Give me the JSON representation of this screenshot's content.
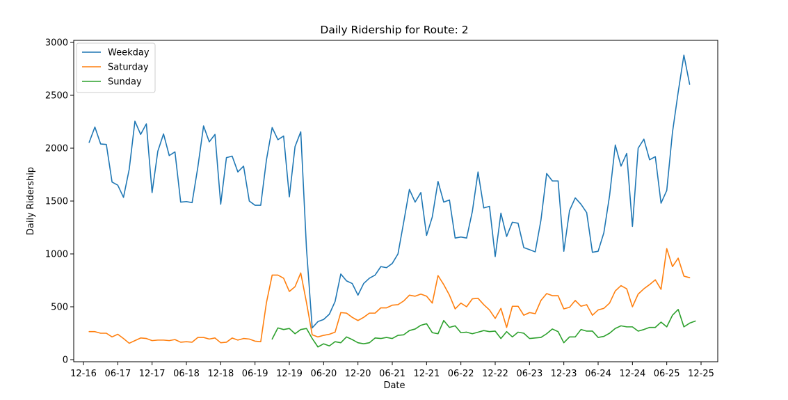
{
  "chart_data": {
    "type": "line",
    "title": "Daily Ridership for Route: 2",
    "xlabel": "Date",
    "ylabel": "Daily Ridership",
    "ylim": [
      0,
      3000
    ],
    "yticks": [
      0,
      500,
      1000,
      1500,
      2000,
      2500,
      3000
    ],
    "x_tick_labels": [
      "12-16",
      "06-17",
      "12-17",
      "06-18",
      "12-18",
      "06-19",
      "12-19",
      "06-20",
      "12-20",
      "06-21",
      "12-21",
      "06-22",
      "12-22",
      "06-23",
      "12-23",
      "06-24",
      "12-24",
      "06-25",
      "12-25"
    ],
    "x_tick_dates": [
      "2016-12",
      "2017-06",
      "2017-12",
      "2018-06",
      "2018-12",
      "2019-06",
      "2019-12",
      "2020-06",
      "2020-12",
      "2021-06",
      "2021-12",
      "2022-06",
      "2022-12",
      "2023-06",
      "2023-12",
      "2024-06",
      "2024-12",
      "2025-06",
      "2025-12"
    ],
    "x_start": "2016-12",
    "x_end": "2025-12",
    "grid": false,
    "legend_position": "top-left",
    "series": [
      {
        "name": "Weekday",
        "color": "#1f77b4",
        "start": "2017-01",
        "values": [
          2055,
          2200,
          2040,
          2035,
          1680,
          1650,
          1535,
          1800,
          2255,
          2130,
          2230,
          1580,
          1970,
          2135,
          1930,
          1965,
          1490,
          1495,
          1485,
          1820,
          2210,
          2060,
          2130,
          1470,
          1910,
          1925,
          1775,
          1830,
          1500,
          1460,
          1460,
          1890,
          2195,
          2080,
          2115,
          1540,
          2015,
          2155,
          1050,
          300,
          360,
          380,
          430,
          550,
          810,
          745,
          720,
          610,
          720,
          770,
          800,
          880,
          870,
          910,
          1000,
          1300,
          1610,
          1490,
          1580,
          1175,
          1350,
          1685,
          1490,
          1510,
          1150,
          1160,
          1150,
          1400,
          1775,
          1435,
          1450,
          975,
          1385,
          1165,
          1300,
          1290,
          1060,
          1040,
          1020,
          1320,
          1760,
          1690,
          1690,
          1025,
          1410,
          1530,
          1470,
          1390,
          1015,
          1025,
          1200,
          1550,
          2030,
          1830,
          1950,
          1260,
          2000,
          2085,
          1890,
          1920,
          1480,
          1600,
          2150,
          2530,
          2880,
          2605
        ]
      },
      {
        "name": "Saturday",
        "color": "#ff7f0e",
        "start": "2017-01",
        "values": [
          265,
          265,
          250,
          250,
          215,
          240,
          200,
          155,
          180,
          205,
          200,
          180,
          185,
          185,
          180,
          190,
          165,
          170,
          165,
          210,
          210,
          195,
          205,
          160,
          165,
          205,
          185,
          200,
          195,
          175,
          170,
          540,
          800,
          800,
          770,
          645,
          690,
          820,
          540,
          235,
          215,
          230,
          240,
          260,
          445,
          440,
          400,
          370,
          400,
          440,
          440,
          490,
          490,
          515,
          520,
          555,
          610,
          600,
          620,
          600,
          535,
          795,
          710,
          610,
          480,
          535,
          500,
          575,
          580,
          520,
          470,
          390,
          485,
          305,
          505,
          505,
          420,
          445,
          435,
          560,
          625,
          605,
          605,
          480,
          495,
          560,
          505,
          520,
          420,
          470,
          485,
          535,
          650,
          700,
          670,
          500,
          620,
          670,
          710,
          755,
          665,
          1050,
          880,
          960,
          790,
          775
        ]
      },
      {
        "name": "Sunday",
        "color": "#2ca02c",
        "start": "2019-09",
        "values": [
          195,
          300,
          285,
          295,
          245,
          285,
          295,
          200,
          120,
          150,
          130,
          170,
          160,
          215,
          190,
          160,
          150,
          160,
          205,
          200,
          210,
          200,
          230,
          235,
          275,
          290,
          325,
          340,
          255,
          245,
          370,
          305,
          320,
          255,
          260,
          245,
          260,
          275,
          265,
          270,
          200,
          265,
          215,
          260,
          250,
          200,
          205,
          210,
          245,
          290,
          265,
          160,
          215,
          215,
          285,
          270,
          270,
          210,
          220,
          250,
          295,
          320,
          310,
          310,
          270,
          285,
          305,
          305,
          355,
          310,
          420,
          475,
          310,
          345,
          365
        ]
      }
    ]
  }
}
